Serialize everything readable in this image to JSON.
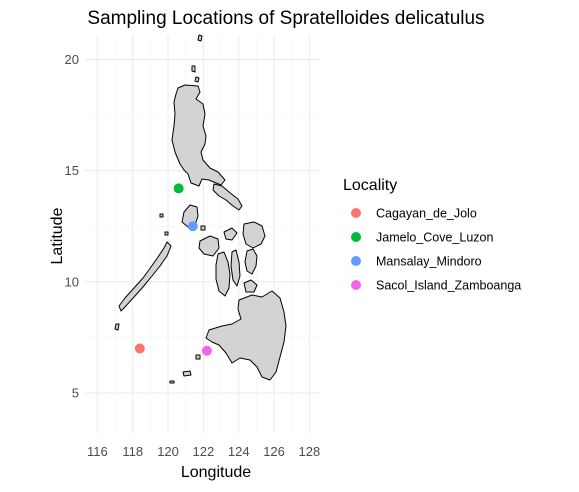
{
  "chart_data": {
    "type": "scatter",
    "title": "Sampling Locations of Spratelloides delicatulus",
    "xlabel": "Longitude",
    "ylabel": "Latitude",
    "xlim": [
      115.3,
      128.6
    ],
    "ylim": [
      3.2,
      21.1
    ],
    "x_ticks": [
      116,
      118,
      120,
      122,
      124,
      126,
      128
    ],
    "y_ticks": [
      5,
      10,
      15,
      20
    ],
    "grid": true,
    "basemap": "Philippines",
    "legend": {
      "title": "Locality",
      "position": "right",
      "entries": [
        {
          "label": "Cagayan_de_Jolo",
          "color": "#F8766D"
        },
        {
          "label": "Jamelo_Cove_Luzon",
          "color": "#00BA38"
        },
        {
          "label": "Mansalay_Mindoro",
          "color": "#619CFF"
        },
        {
          "label": "Sacol_Island_Zamboanga",
          "color": "#F564E3"
        }
      ]
    },
    "series": [
      {
        "name": "Cagayan_de_Jolo",
        "x": 118.4,
        "y": 7.0,
        "color": "#F8766D"
      },
      {
        "name": "Jamelo_Cove_Luzon",
        "x": 120.6,
        "y": 14.2,
        "color": "#00BA38"
      },
      {
        "name": "Mansalay_Mindoro",
        "x": 121.4,
        "y": 12.5,
        "color": "#619CFF"
      },
      {
        "name": "Sacol_Island_Zamboanga",
        "x": 122.2,
        "y": 6.9,
        "color": "#F564E3"
      }
    ]
  }
}
